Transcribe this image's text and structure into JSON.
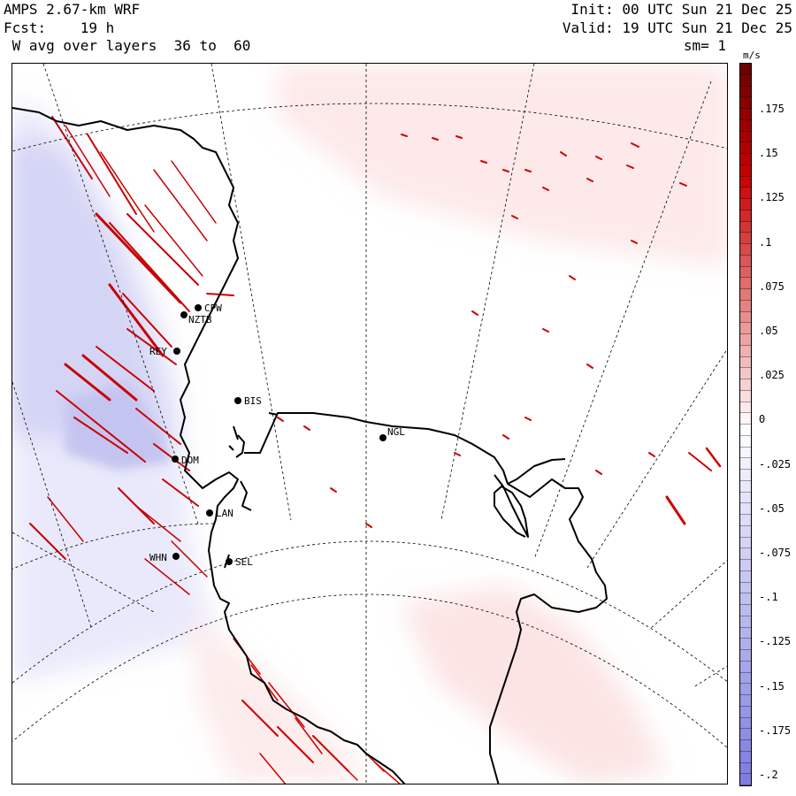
{
  "header": {
    "model": "AMPS 2.67-km WRF",
    "forecast": "Fcst:    19 h",
    "field": " W avg over layers  36 to  60",
    "init": "Init: 00 UTC Sun 21 Dec 25",
    "valid": "Valid: 19 UTC Sun 21 Dec 25",
    "smoothing": "sm= 1"
  },
  "colorbar": {
    "units": "m/s",
    "labels": [
      ".175",
      ".15",
      ".125",
      ".1",
      ".075",
      ".05",
      ".025",
      "0",
      "-.025",
      "-.05",
      "-.075",
      "-.1",
      "-.125",
      "-.15",
      "-.175",
      "-.2"
    ],
    "min": -0.2,
    "max": 0.2,
    "positive_color": "#cc0000",
    "negative_color": "#7777dd"
  },
  "stations": [
    {
      "code": "CPW"
    },
    {
      "code": "NZTB"
    },
    {
      "code": "REY"
    },
    {
      "code": "BIS"
    },
    {
      "code": "NGL"
    },
    {
      "code": "DOM"
    },
    {
      "code": "LAN"
    },
    {
      "code": "WHN"
    },
    {
      "code": "SEL"
    }
  ]
}
